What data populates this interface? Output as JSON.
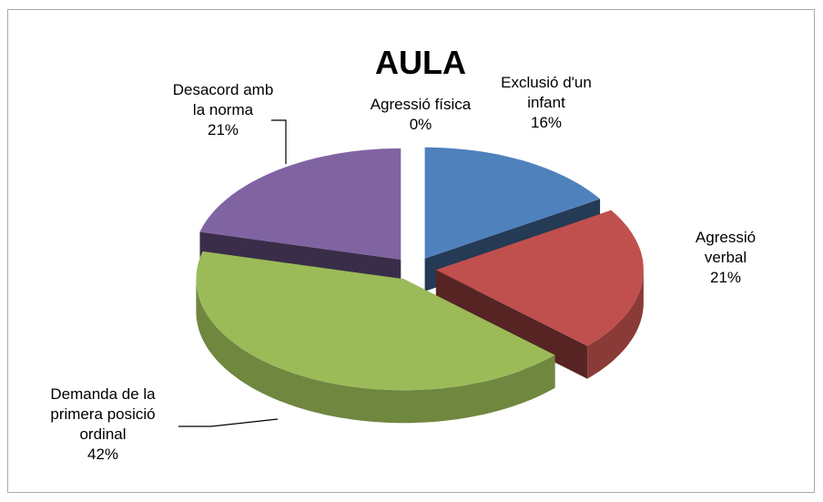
{
  "chart_data": {
    "type": "pie3d",
    "title": "AULA",
    "categories": [
      "Agressió física",
      "Exclusió d'un infant",
      "Agressió verbal",
      "Demanda de la primera posició ordinal",
      "Desacord amb la norma"
    ],
    "values": [
      0,
      16,
      21,
      42,
      21
    ],
    "value_labels": [
      "0%",
      "16%",
      "21%",
      "42%",
      "21%"
    ],
    "colors": [
      "#4bacc6",
      "#4f81bd",
      "#c0504d",
      "#9bbb59",
      "#8064a2"
    ]
  }
}
